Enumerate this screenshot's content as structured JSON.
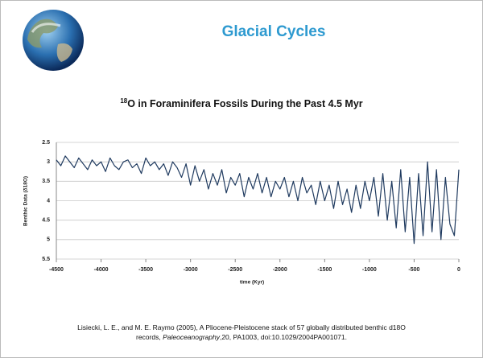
{
  "chart_data": {
    "type": "line",
    "title": "Glacial Cycles",
    "subtitle_sup": "18",
    "subtitle": "O in Foraminifera Fossils During the Past 4.5 Myr",
    "ylabel": "Benthic Data (δ18O)",
    "xlabel": "time (Kyr)",
    "citation": {
      "part1": "Lisiecki, L. E., and M. E. Raymo (2005), A Pliocene-Pleistocene stack of 57 globally distributed benthic d18O records, ",
      "journal": "Paleoceanography",
      "part2": ",20, PA1003, doi:10.1029/2004PA001071."
    },
    "x": [
      -4500,
      -4450,
      -4400,
      -4350,
      -4300,
      -4250,
      -4200,
      -4150,
      -4100,
      -4050,
      -4000,
      -3950,
      -3900,
      -3850,
      -3800,
      -3750,
      -3700,
      -3650,
      -3600,
      -3550,
      -3500,
      -3450,
      -3400,
      -3350,
      -3300,
      -3250,
      -3200,
      -3150,
      -3100,
      -3050,
      -3000,
      -2950,
      -2900,
      -2850,
      -2800,
      -2750,
      -2700,
      -2650,
      -2600,
      -2550,
      -2500,
      -2450,
      -2400,
      -2350,
      -2300,
      -2250,
      -2200,
      -2150,
      -2100,
      -2050,
      -2000,
      -1950,
      -1900,
      -1850,
      -1800,
      -1750,
      -1700,
      -1650,
      -1600,
      -1550,
      -1500,
      -1450,
      -1400,
      -1350,
      -1300,
      -1250,
      -1200,
      -1150,
      -1100,
      -1050,
      -1000,
      -950,
      -900,
      -850,
      -800,
      -750,
      -700,
      -650,
      -600,
      -550,
      -500,
      -450,
      -400,
      -350,
      -300,
      -250,
      -200,
      -150,
      -100,
      -50,
      0
    ],
    "values": [
      2.95,
      3.1,
      2.85,
      3.0,
      3.15,
      2.9,
      3.05,
      3.2,
      2.95,
      3.1,
      3.0,
      3.25,
      2.9,
      3.1,
      3.2,
      3.0,
      2.95,
      3.15,
      3.05,
      3.3,
      2.9,
      3.1,
      3.0,
      3.2,
      3.05,
      3.35,
      3.0,
      3.15,
      3.4,
      3.05,
      3.6,
      3.1,
      3.5,
      3.2,
      3.7,
      3.3,
      3.6,
      3.2,
      3.8,
      3.4,
      3.6,
      3.3,
      3.9,
      3.4,
      3.7,
      3.3,
      3.8,
      3.4,
      3.9,
      3.5,
      3.7,
      3.4,
      3.9,
      3.5,
      4.0,
      3.4,
      3.8,
      3.6,
      4.1,
      3.5,
      4.0,
      3.6,
      4.2,
      3.5,
      4.1,
      3.7,
      4.3,
      3.6,
      4.2,
      3.5,
      4.0,
      3.4,
      4.4,
      3.3,
      4.5,
      3.5,
      4.7,
      3.2,
      4.8,
      3.4,
      5.1,
      3.3,
      4.9,
      3.0,
      4.8,
      3.2,
      5.0,
      3.4,
      4.6,
      4.9,
      3.2
    ],
    "color": "#1f3a5f",
    "xlim": [
      -4500,
      0
    ],
    "xticks": [
      -4500,
      -4000,
      -3500,
      -3000,
      -2500,
      -2000,
      -1500,
      -1000,
      -500,
      0
    ],
    "ylim": [
      2.5,
      5.5
    ],
    "yticks": [
      2.5,
      3,
      3.5,
      4,
      4.5,
      5,
      5.5
    ],
    "y_inverted": true,
    "grid": true
  }
}
